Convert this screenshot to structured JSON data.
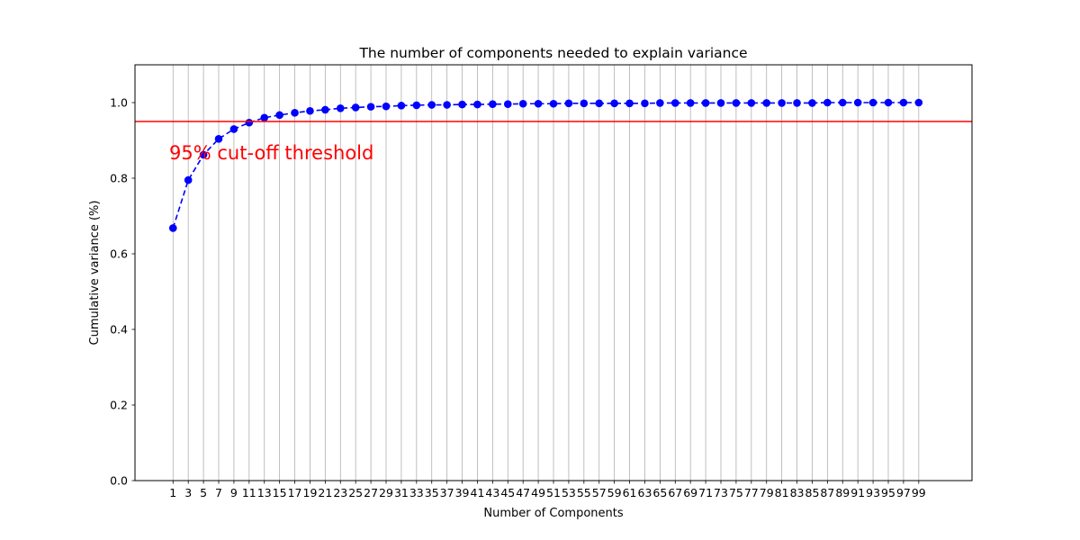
{
  "chart_data": {
    "type": "line",
    "title": "The number of components needed to explain variance",
    "xlabel": "Number of Components",
    "ylabel": "Cumulative variance (%)",
    "ylim": [
      0,
      1.1
    ],
    "xlim": [
      -4,
      106
    ],
    "x_ticks": [
      1,
      3,
      5,
      7,
      9,
      11,
      13,
      15,
      17,
      19,
      21,
      23,
      25,
      27,
      29,
      31,
      33,
      35,
      37,
      39,
      41,
      43,
      45,
      47,
      49,
      51,
      53,
      55,
      57,
      59,
      61,
      63,
      65,
      67,
      69,
      71,
      73,
      75,
      77,
      79,
      81,
      83,
      85,
      87,
      89,
      91,
      93,
      95,
      97,
      99
    ],
    "y_ticks": [
      0.0,
      0.2,
      0.4,
      0.6,
      0.8,
      1.0
    ],
    "grid": "x-axis vertical lines",
    "series": [
      {
        "color": "#0000ff",
        "line_style": "dashed",
        "marker": "circle",
        "x": [
          1,
          3,
          5,
          7,
          9,
          11,
          13,
          15,
          17,
          19,
          21,
          23,
          25,
          27,
          29,
          31,
          33,
          35,
          37,
          39,
          41,
          43,
          45,
          47,
          49,
          51,
          53,
          55,
          57,
          59,
          61,
          63,
          65,
          67,
          69,
          71,
          73,
          75,
          77,
          79,
          81,
          83,
          85,
          87,
          89,
          91,
          93,
          95,
          97,
          99
        ],
        "values": [
          0.668,
          0.795,
          0.862,
          0.904,
          0.93,
          0.947,
          0.96,
          0.967,
          0.973,
          0.978,
          0.981,
          0.985,
          0.987,
          0.989,
          0.99,
          0.992,
          0.993,
          0.994,
          0.994,
          0.995,
          0.995,
          0.996,
          0.996,
          0.997,
          0.997,
          0.997,
          0.998,
          0.998,
          0.998,
          0.998,
          0.998,
          0.998,
          0.999,
          0.999,
          0.999,
          0.999,
          0.999,
          0.999,
          0.999,
          0.999,
          0.999,
          0.999,
          0.999,
          1.0,
          1.0,
          1.0,
          1.0,
          1.0,
          1.0,
          1.0
        ]
      }
    ],
    "threshold": {
      "y": 0.95,
      "color": "#ff0000"
    },
    "annotation": {
      "text": "95% cut-off threshold",
      "x": 0.5,
      "y": 0.85,
      "color": "#ff0000"
    }
  }
}
